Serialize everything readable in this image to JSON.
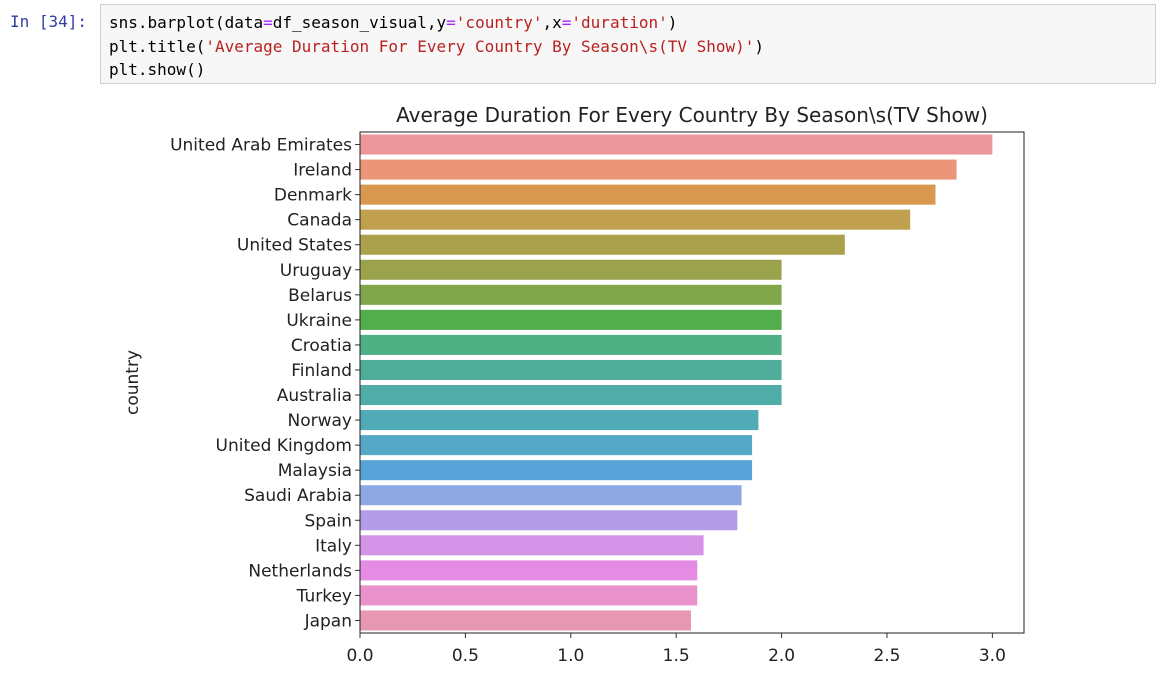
{
  "cell": {
    "prompt": "In [34]:",
    "lines": [
      [
        {
          "t": "sns.barplot(data",
          "c": "n"
        },
        {
          "t": "=",
          "c": "o"
        },
        {
          "t": "df_season_visual,y",
          "c": "n"
        },
        {
          "t": "=",
          "c": "o"
        },
        {
          "t": "'country'",
          "c": "s"
        },
        {
          "t": ",x",
          "c": "n"
        },
        {
          "t": "=",
          "c": "o"
        },
        {
          "t": "'duration'",
          "c": "s"
        },
        {
          "t": ")",
          "c": "n"
        }
      ],
      [
        {
          "t": "plt.title(",
          "c": "n"
        },
        {
          "t": "'Average Duration For Every Country By Season\\s(TV Show)'",
          "c": "s"
        },
        {
          "t": ")",
          "c": "n"
        }
      ],
      [
        {
          "t": "plt.show()",
          "c": "n"
        }
      ]
    ]
  },
  "chart_data": {
    "type": "bar",
    "orientation": "horizontal",
    "title": "Average Duration For Every Country By Season\\s(TV Show)",
    "xlabel": "",
    "ylabel": "country",
    "xlim": [
      0,
      3.15
    ],
    "xticks": [
      "0.0",
      "0.5",
      "1.0",
      "1.5",
      "2.0",
      "2.5",
      "3.0"
    ],
    "grid": false,
    "categories": [
      "United Arab Emirates",
      "Ireland",
      "Denmark",
      "Canada",
      "United States",
      "Uruguay",
      "Belarus",
      "Ukraine",
      "Croatia",
      "Finland",
      "Australia",
      "Norway",
      "United Kingdom",
      "Malaysia",
      "Saudi Arabia",
      "Spain",
      "Italy",
      "Netherlands",
      "Turkey",
      "Japan"
    ],
    "values": [
      3.0,
      2.83,
      2.73,
      2.61,
      2.3,
      2.0,
      2.0,
      2.0,
      2.0,
      2.0,
      2.0,
      1.89,
      1.86,
      1.86,
      1.81,
      1.79,
      1.63,
      1.6,
      1.6,
      1.57
    ],
    "colors": [
      "#ea969a",
      "#eb9679",
      "#d9984f",
      "#c09f4f",
      "#aba04c",
      "#9aa24c",
      "#82a64a",
      "#54ad4c",
      "#4faf85",
      "#4fad9a",
      "#50aca7",
      "#50aab7",
      "#54a8c6",
      "#57a3d7",
      "#8ea8e4",
      "#b39de9",
      "#d493e6",
      "#e48ce3",
      "#e992cb",
      "#e897b2"
    ]
  }
}
